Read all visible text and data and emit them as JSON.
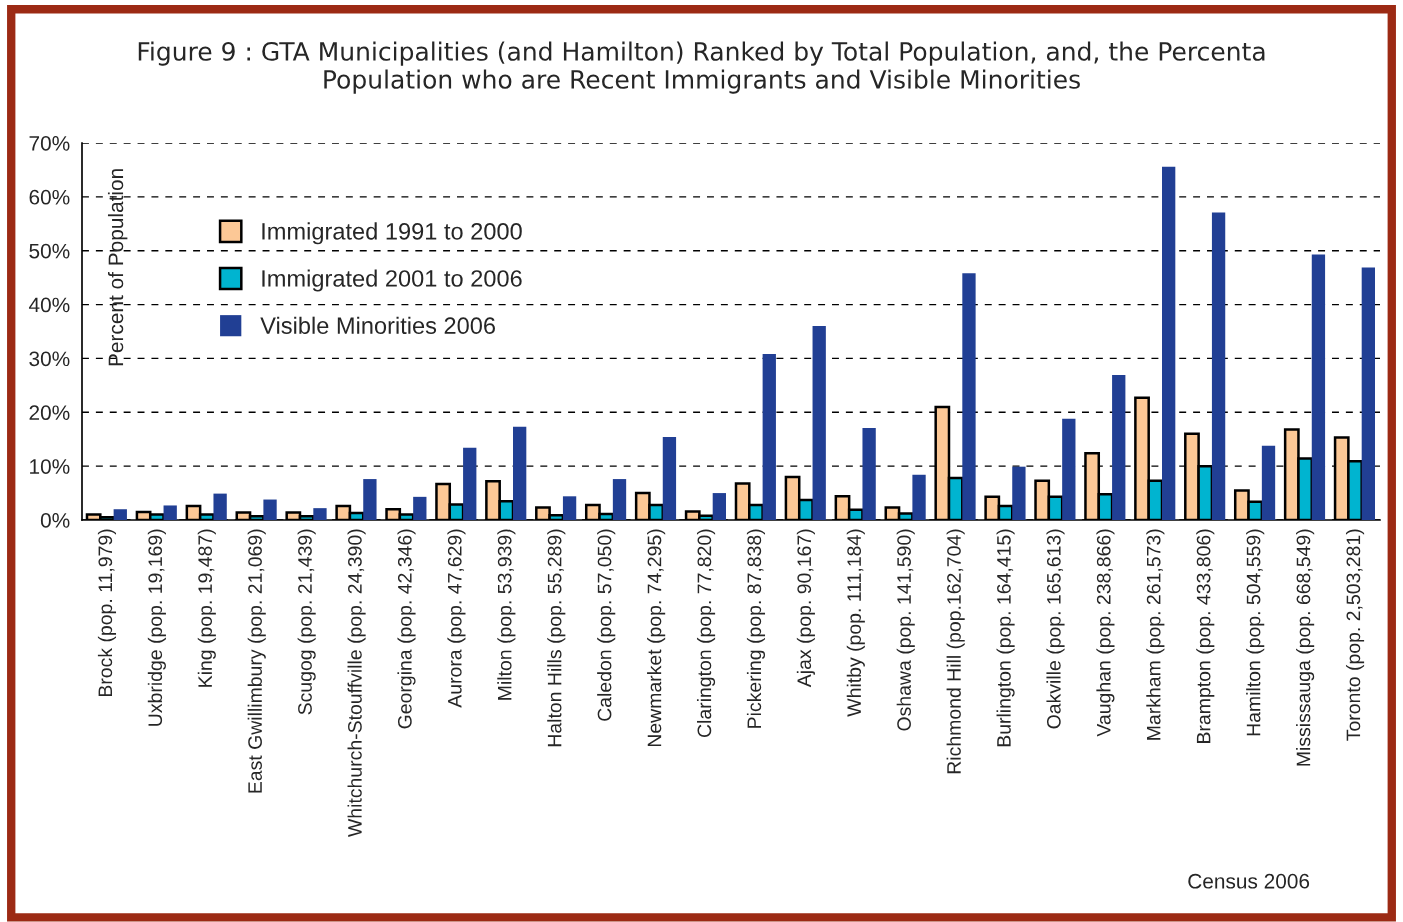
{
  "chart_data": {
    "type": "bar",
    "title": "Figure 9 : GTA Municipalities (and Hamilton) Ranked by Total Population, and, the Percenta\nPopulation who are Recent Immigrants and Visible Minorities",
    "ylabel": "Percent of Population",
    "categories": [
      "Brock (pop. 11,979)",
      "Uxbridge (pop. 19,169)",
      "King (pop. 19,487)",
      "East Gwillimbury (pop. 21,069)",
      "Scugog (pop. 21,439)",
      "Whitchurch-Stouffville (pop. 24,390)",
      "Georgina (pop. 42,346)",
      "Aurora (pop. 47,629)",
      "Milton (pop. 53,939)",
      "Halton Hills (pop. 55,289)",
      "Caledon (pop. 57,050)",
      "Newmarket (pop. 74,295)",
      "Clarington (pop. 77,820)",
      "Pickering (pop. 87,838)",
      "Ajax (pop. 90,167)",
      "Whitby (pop. 111,184)",
      "Oshawa (pop. 141,590)",
      "Richmond Hill (pop.162,704)",
      "Burlington (pop. 164,415)",
      "Oakville (pop. 165,613)",
      "Vaughan (pop. 238,866)",
      "Markham (pop. 261,573)",
      "Brampton (pop. 433,806)",
      "Hamilton (pop. 504,559)",
      "Mississauga (pop. 668,549)",
      "Toronto (pop. 2,503,281)"
    ],
    "series": [
      {
        "name": "Immigrated 1991 to 2000",
        "color": "#fcc896",
        "values": [
          1.0,
          1.5,
          2.6,
          1.4,
          1.4,
          2.6,
          2.0,
          6.7,
          7.2,
          2.3,
          2.8,
          5.0,
          1.6,
          6.8,
          8.0,
          4.4,
          2.3,
          21.0,
          4.3,
          7.3,
          12.4,
          22.7,
          16.0,
          5.5,
          16.8,
          15.3
        ]
      },
      {
        "name": "Immigrated 2001 to 2006",
        "color": "#00b4d0",
        "values": [
          0.5,
          1.0,
          1.0,
          0.7,
          0.7,
          1.3,
          1.0,
          2.9,
          3.5,
          0.9,
          1.1,
          2.8,
          0.8,
          2.8,
          3.7,
          1.9,
          1.2,
          7.8,
          2.6,
          4.3,
          4.8,
          7.3,
          10.0,
          3.4,
          11.4,
          10.9
        ]
      },
      {
        "name": "Visible Minorities 2006",
        "color": "#213f94",
        "values": [
          2.0,
          2.7,
          4.9,
          3.8,
          2.2,
          7.6,
          4.3,
          13.4,
          17.3,
          4.4,
          7.6,
          15.4,
          5.0,
          30.8,
          36.0,
          17.1,
          8.4,
          45.8,
          9.9,
          18.8,
          26.9,
          65.6,
          57.1,
          13.8,
          49.3,
          46.9
        ]
      }
    ],
    "ylim": [
      0,
      70
    ],
    "yticks": [
      {
        "value": 0,
        "label": "0%"
      },
      {
        "value": 10,
        "label": "10%"
      },
      {
        "value": 20,
        "label": "20%"
      },
      {
        "value": 30,
        "label": "30%"
      },
      {
        "value": 40,
        "label": "40%"
      },
      {
        "value": 50,
        "label": "50%"
      },
      {
        "value": 60,
        "label": "60%"
      },
      {
        "value": 70,
        "label": "70%"
      }
    ],
    "grid": "y",
    "legend": "top left",
    "annotations": [
      "Census 2006"
    ]
  }
}
